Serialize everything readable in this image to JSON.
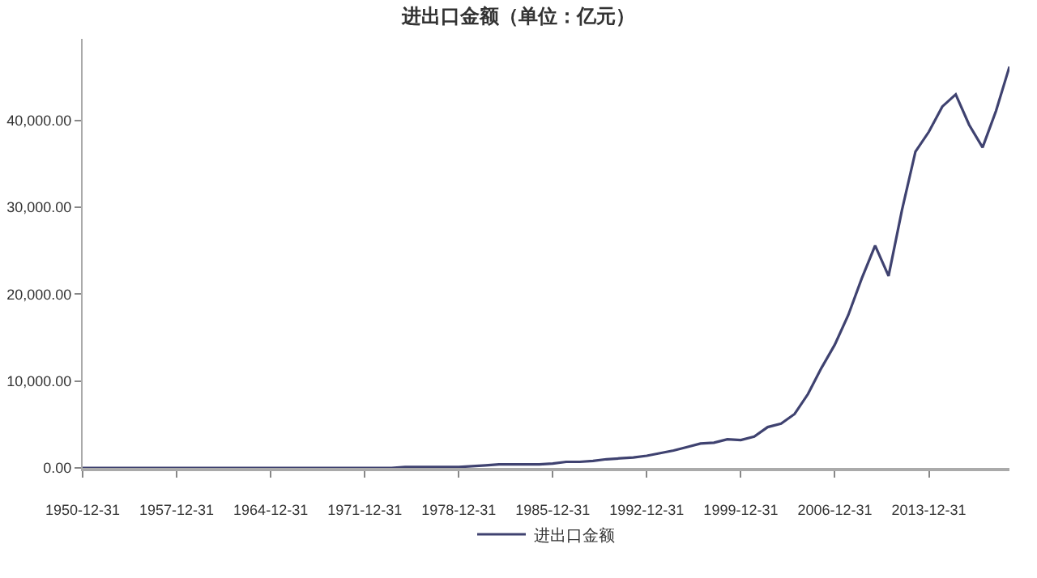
{
  "chart_data": {
    "type": "line",
    "title": "进出口金额（单位：亿元）",
    "categories": [
      "1950-12-31",
      null,
      null,
      null,
      null,
      null,
      null,
      "1957-12-31",
      null,
      null,
      null,
      null,
      null,
      null,
      "1964-12-31",
      null,
      null,
      null,
      null,
      null,
      null,
      "1971-12-31",
      null,
      null,
      null,
      null,
      null,
      null,
      "1978-12-31",
      null,
      null,
      null,
      null,
      null,
      null,
      "1985-12-31",
      null,
      null,
      null,
      null,
      null,
      null,
      "1992-12-31",
      null,
      null,
      null,
      null,
      null,
      null,
      "1999-12-31",
      null,
      null,
      null,
      null,
      null,
      null,
      "2006-12-31",
      null,
      null,
      null,
      null,
      null,
      null,
      "2013-12-31",
      null,
      null,
      null,
      null,
      null,
      null
    ],
    "series": [
      {
        "name": "进出口金额",
        "color": "#3f4270",
        "values": [
          0,
          0,
          0,
          0,
          0,
          0,
          0,
          0,
          0,
          0,
          0,
          0,
          0,
          0,
          0,
          0,
          0,
          0,
          0,
          0,
          0,
          0,
          0,
          0,
          100,
          100,
          100,
          100,
          100,
          200,
          300,
          400,
          400,
          400,
          400,
          500,
          700,
          700,
          800,
          1000,
          1100,
          1200,
          1400,
          1700,
          2000,
          2400,
          2800,
          2900,
          3300,
          3200,
          3600,
          4700,
          5100,
          6200,
          8500,
          11500,
          14200,
          17600,
          21800,
          25600,
          22100,
          29700,
          36400,
          38700,
          41600,
          43000,
          39500,
          36900,
          41100,
          46200
        ]
      }
    ],
    "ylim": [
      0,
      49400
    ],
    "yticks": [
      {
        "value": 0,
        "label": "0.00"
      },
      {
        "value": 10000,
        "label": "10,000.00"
      },
      {
        "value": 20000,
        "label": "20,000.00"
      },
      {
        "value": 30000,
        "label": "30,000.00"
      },
      {
        "value": 40000,
        "label": "40,000.00"
      }
    ],
    "grid": false,
    "legend": "bottom",
    "marker": "none",
    "line_style": "solid"
  }
}
